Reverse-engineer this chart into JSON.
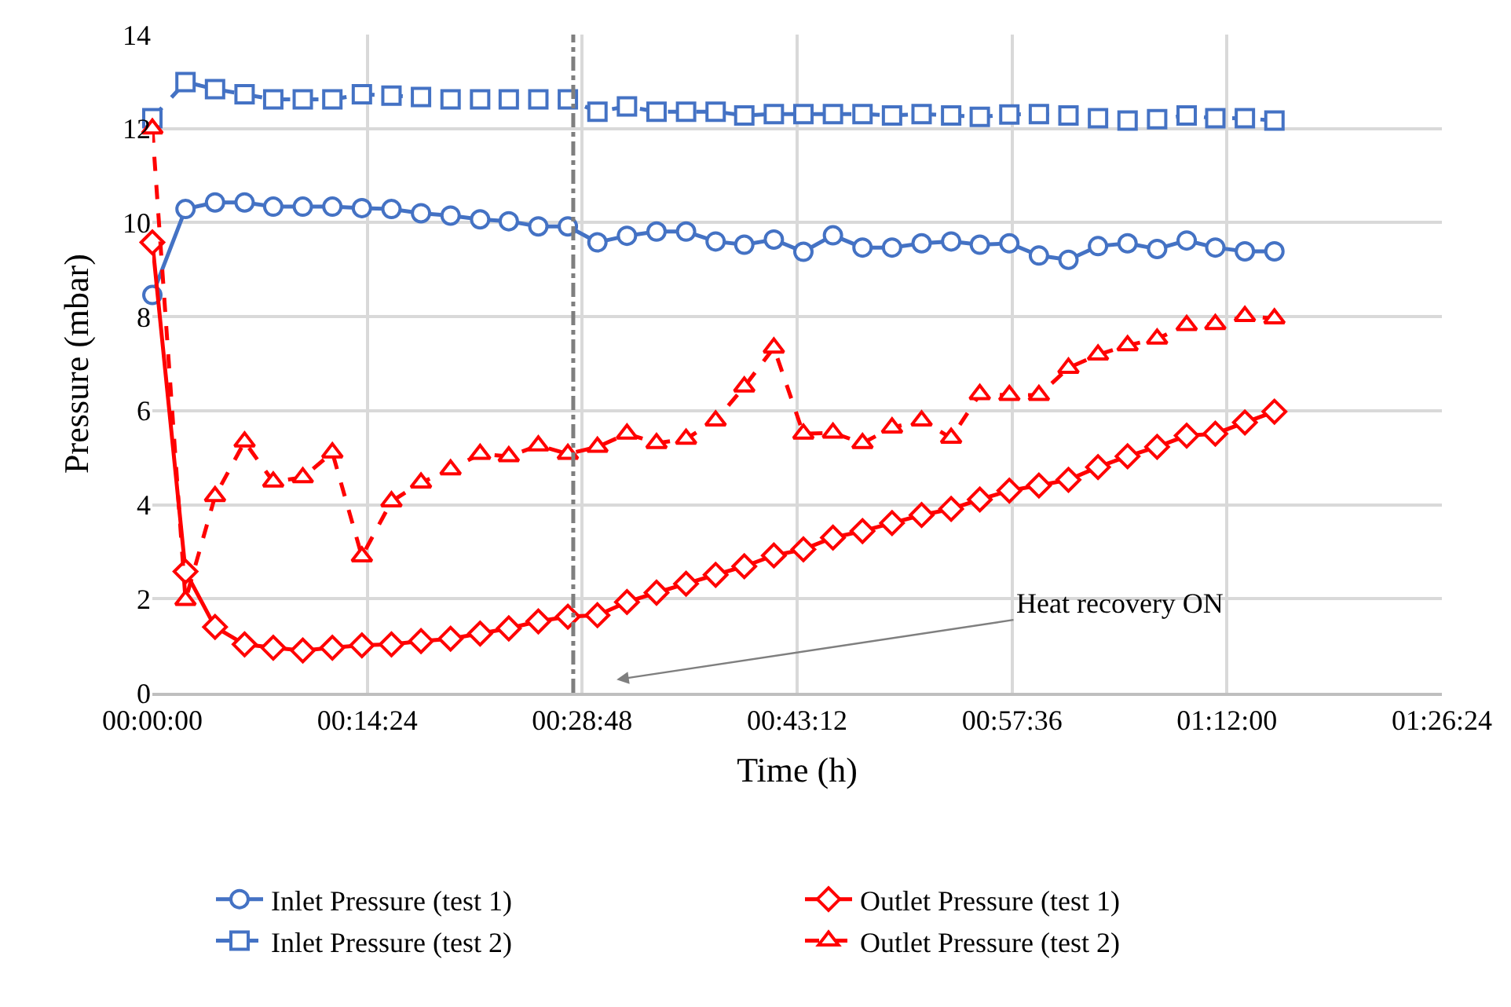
{
  "chart_data": {
    "type": "line",
    "xlabel": "Time (h)",
    "ylabel": "Pressure (mbar)",
    "x": [
      0,
      0.037,
      0.07,
      0.103,
      0.135,
      0.168,
      0.201,
      0.234,
      0.267,
      0.3,
      0.333,
      0.366,
      0.398,
      0.431,
      0.464,
      0.497,
      0.53,
      0.563,
      0.596,
      0.629,
      0.661,
      0.694,
      0.727,
      0.76,
      0.793,
      0.826,
      0.859,
      0.892,
      0.924,
      0.957,
      0.99,
      1.023,
      1.056,
      1.089,
      1.122,
      1.155,
      1.187,
      1.22,
      1.253
    ],
    "series": [
      {
        "name": "Inlet Pressure (test 1)",
        "color": "#4472c4",
        "marker": "circle",
        "line_style": "solid",
        "values": [
          8.46,
          10.29,
          10.43,
          10.43,
          10.34,
          10.34,
          10.34,
          10.31,
          10.29,
          10.2,
          10.15,
          10.07,
          10.03,
          9.92,
          9.92,
          9.58,
          9.72,
          9.81,
          9.81,
          9.6,
          9.53,
          9.64,
          9.38,
          9.73,
          9.47,
          9.47,
          9.56,
          9.6,
          9.53,
          9.56,
          9.3,
          9.21,
          9.5,
          9.56,
          9.44,
          9.62,
          9.47,
          9.39,
          9.39
        ]
      },
      {
        "name": "Outlet Pressure (test 1)",
        "color": "#ff0000",
        "marker": "diamond",
        "line_style": "solid",
        "values": [
          9.58,
          2.58,
          1.4,
          1.03,
          0.96,
          0.9,
          0.96,
          1.01,
          1.03,
          1.1,
          1.15,
          1.26,
          1.37,
          1.52,
          1.62,
          1.65,
          1.93,
          2.13,
          2.32,
          2.51,
          2.69,
          2.92,
          3.05,
          3.3,
          3.44,
          3.61,
          3.78,
          3.91,
          4.11,
          4.3,
          4.41,
          4.53,
          4.8,
          5.03,
          5.23,
          5.47,
          5.51,
          5.75,
          5.98
        ]
      },
      {
        "name": "Inlet Pressure (test 2)",
        "color": "#4472c4",
        "marker": "square",
        "line_style": "dashed",
        "values": [
          12.22,
          12.99,
          12.84,
          12.73,
          12.62,
          12.62,
          12.62,
          12.73,
          12.7,
          12.67,
          12.62,
          12.62,
          12.62,
          12.62,
          12.62,
          12.36,
          12.47,
          12.36,
          12.36,
          12.36,
          12.28,
          12.31,
          12.31,
          12.31,
          12.31,
          12.28,
          12.31,
          12.28,
          12.25,
          12.3,
          12.31,
          12.28,
          12.22,
          12.17,
          12.2,
          12.28,
          12.22,
          12.22,
          12.17
        ]
      },
      {
        "name": "Outlet Pressure (test 2)",
        "color": "#ff0000",
        "marker": "triangle",
        "line_style": "dashed",
        "values": [
          12.0,
          1.97,
          4.18,
          5.34,
          4.49,
          4.58,
          5.11,
          2.9,
          4.07,
          4.47,
          4.75,
          5.08,
          5.03,
          5.26,
          5.08,
          5.23,
          5.51,
          5.31,
          5.4,
          5.79,
          6.51,
          7.34,
          5.51,
          5.53,
          5.31,
          5.64,
          5.79,
          5.42,
          6.35,
          6.33,
          6.33,
          6.91,
          7.19,
          7.39,
          7.53,
          7.82,
          7.84,
          8.01,
          7.96
        ]
      }
    ],
    "xlim": [
      0,
      1.44
    ],
    "xticks": [
      {
        "value": 0,
        "label": "00:00:00"
      },
      {
        "value": 0.24,
        "label": "00:14:24"
      },
      {
        "value": 0.48,
        "label": "00:28:48"
      },
      {
        "value": 0.72,
        "label": "00:43:12"
      },
      {
        "value": 0.96,
        "label": "00:57:36"
      },
      {
        "value": 1.2,
        "label": "01:12:00"
      },
      {
        "value": 1.44,
        "label": "01:26:24"
      }
    ],
    "ylim": [
      0,
      14
    ],
    "yticks": [
      0,
      2,
      4,
      6,
      8,
      10,
      12,
      14
    ],
    "ref_lines": [
      {
        "axis": "x",
        "value": 0.47,
        "color": "#7f7f7f",
        "line_style": "dashdot"
      }
    ],
    "annotations": [
      "Heat recovery ON"
    ],
    "grid": true,
    "legend": "bottom"
  }
}
